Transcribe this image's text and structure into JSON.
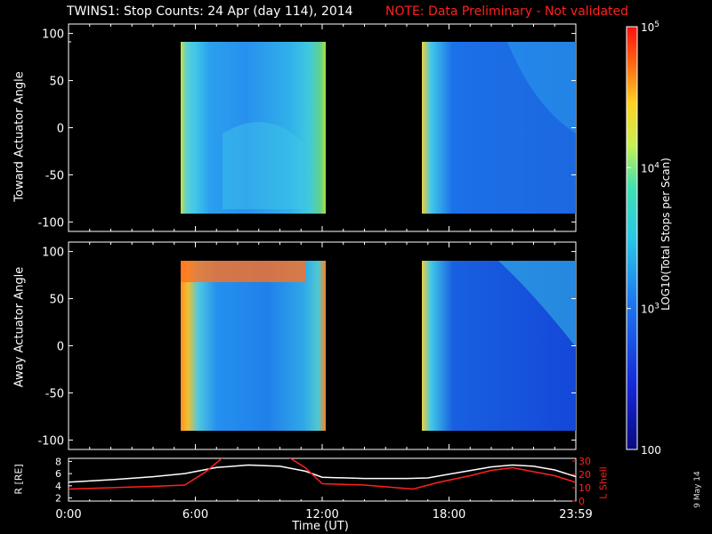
{
  "title": "TWINS1: Stop Counts: 24 Apr (day 114), 2014",
  "note": "NOTE: Data Preliminary - Not validated",
  "date_stamp": "9 May 14",
  "colors": {
    "background": "#000000",
    "axes": "#ffffff",
    "note": "#ff2020",
    "lshell": "#ff2020",
    "r_line": "#ffffff"
  },
  "chart_data": [
    {
      "type": "heatmap",
      "ylabel": "Toward Actuator Angle",
      "ylim": [
        -110,
        110
      ],
      "yticks": [
        100,
        50,
        0,
        -50,
        -100
      ],
      "xlim": [
        0,
        24
      ],
      "data_ranges_hours": [
        [
          5.2,
          12.0
        ],
        [
          16.9,
          24.0
        ]
      ],
      "angle_range": [
        -90,
        90
      ],
      "color_scale": "log"
    },
    {
      "type": "heatmap",
      "ylabel": "Away Actuator Angle",
      "ylim": [
        -110,
        110
      ],
      "yticks": [
        100,
        50,
        0,
        -50,
        -100
      ],
      "xlim": [
        0,
        24
      ],
      "data_ranges_hours": [
        [
          5.2,
          12.0
        ],
        [
          16.9,
          24.0
        ]
      ],
      "angle_range": [
        -90,
        90
      ],
      "color_scale": "log"
    },
    {
      "type": "line",
      "ylabel": "R [RE]",
      "ylabel2": "L Shell",
      "yticks": [
        2,
        4,
        6,
        8
      ],
      "yticks2": [
        0,
        10,
        20,
        30
      ],
      "xlim": [
        0,
        24
      ],
      "xticks": [
        "0:00",
        "6:00",
        "12:00",
        "18:00",
        "23:59"
      ],
      "xlabel": "Time (UT)",
      "series": [
        {
          "name": "R [RE]",
          "x": [
            0,
            2,
            4,
            5.5,
            7,
            8.5,
            10,
            11.2,
            12,
            14,
            16,
            17,
            18.5,
            20,
            21,
            22,
            23,
            24
          ],
          "y": [
            4.6,
            5.0,
            5.5,
            6.0,
            7.0,
            7.4,
            7.2,
            6.4,
            5.4,
            5.2,
            5.2,
            5.3,
            6.2,
            7.1,
            7.4,
            7.2,
            6.6,
            5.5
          ]
        },
        {
          "name": "L Shell",
          "x": [
            0,
            2,
            4,
            5.5,
            6.5,
            7.4,
            8.5,
            9.5,
            10.3,
            11.2,
            12,
            14,
            16.3,
            17.5,
            19,
            20,
            21,
            22,
            23,
            24
          ],
          "y": [
            9,
            10,
            11,
            12,
            22,
            34,
            34,
            34,
            34,
            25,
            13,
            12,
            9,
            14,
            19,
            23,
            25,
            22,
            19,
            14
          ]
        }
      ]
    }
  ],
  "colorbar": {
    "label": "LOG10(Total Stops per Scan)",
    "ticks": [
      {
        "base": "10",
        "exp": "5",
        "value": 100000
      },
      {
        "base": "10",
        "exp": "4",
        "value": 10000
      },
      {
        "base": "10",
        "exp": "3",
        "value": 1000
      },
      {
        "base": "100",
        "exp": "",
        "value": 100
      }
    ]
  },
  "labels": {
    "r_axis": "R [RE]",
    "l_axis": "L Shell",
    "x_axis": "Time (UT)"
  }
}
